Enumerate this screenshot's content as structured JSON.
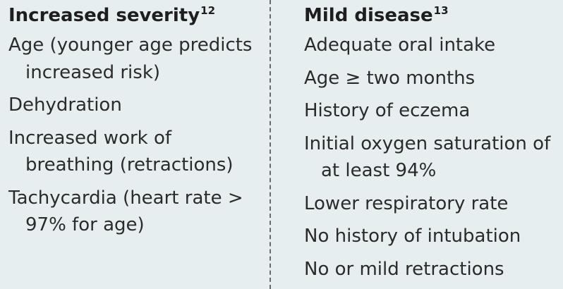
{
  "left": {
    "heading": "Increased severity",
    "heading_ref": "12",
    "items": [
      "Age (younger age predicts increased risk)",
      "Dehydration",
      "Increased work of breathing (retractions)",
      "Tachycardia (heart rate > 97% for age)"
    ]
  },
  "right": {
    "heading": "Mild disease",
    "heading_ref": "13",
    "items": [
      "Adequate oral intake",
      "Age ≥ two months",
      "History of eczema",
      "Initial oxygen saturation of at least 94%",
      "Lower respiratory rate",
      "No history of intubation",
      "No or mild retractions"
    ]
  },
  "colors": {
    "background": "#e6eef0",
    "text": "#2b2b2b",
    "divider": "#6a6a6a"
  }
}
